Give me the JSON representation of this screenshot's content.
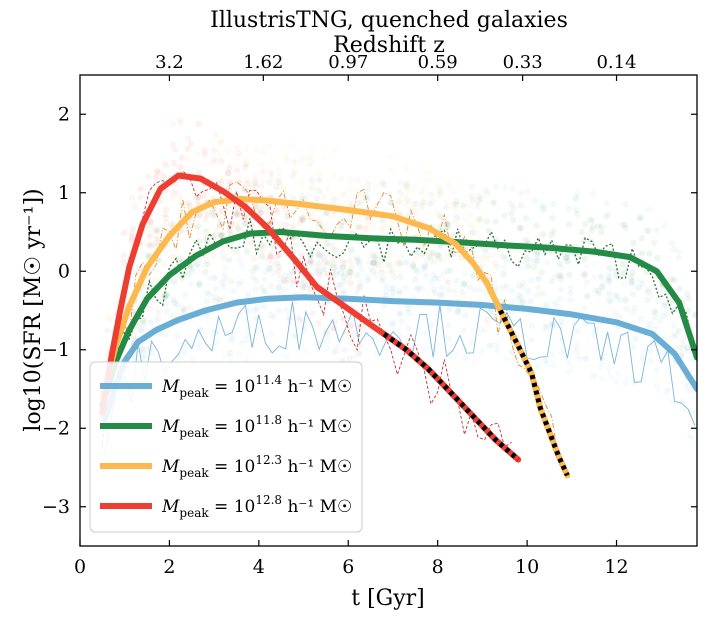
{
  "chart_data": {
    "type": "line",
    "title": "IllustrisTNG, quenched galaxies",
    "top_axis_title": "Redshift z",
    "xlabel": "t [Gyr]",
    "ylabel": "log10(SFR [M☉ yr⁻¹])",
    "xlim": [
      0,
      13.8
    ],
    "ylim": [
      -3.5,
      2.5
    ],
    "xticks": [
      0,
      2,
      4,
      6,
      8,
      10,
      12
    ],
    "yticks": [
      -3,
      -2,
      -1,
      0,
      1,
      2
    ],
    "top_ticks": [
      {
        "label": "3.2",
        "t": 2.0
      },
      {
        "label": "1.62",
        "t": 4.1
      },
      {
        "label": "0.97",
        "t": 6.0
      },
      {
        "label": "0.59",
        "t": 8.0
      },
      {
        "label": "0.33",
        "t": 9.9
      },
      {
        "label": "0.14",
        "t": 12.0
      }
    ],
    "legend_position": "lower-left",
    "series": [
      {
        "name": "Mpeak = 10^11.4 h^-1 M☉",
        "legend_base": "M",
        "legend_sub": "peak",
        "legend_eq": " = 10",
        "legend_exp": "11.4",
        "legend_tail": " h⁻¹ M☉",
        "color": "#6aaed6",
        "t": [
          0.55,
          0.8,
          1.0,
          1.3,
          1.7,
          2.2,
          2.8,
          3.5,
          4.2,
          5.0,
          6.0,
          7.0,
          8.0,
          9.0,
          10.0,
          11.0,
          12.0,
          12.8,
          13.3,
          13.8
        ],
        "sfr": [
          -1.9,
          -1.45,
          -1.15,
          -0.9,
          -0.75,
          -0.62,
          -0.5,
          -0.4,
          -0.35,
          -0.33,
          -0.35,
          -0.38,
          -0.4,
          -0.43,
          -0.48,
          -0.55,
          -0.65,
          -0.8,
          -1.05,
          -1.5
        ],
        "quench_t": null
      },
      {
        "name": "Mpeak = 10^11.8 h^-1 M☉",
        "legend_base": "M",
        "legend_sub": "peak",
        "legend_eq": " = 10",
        "legend_exp": "11.8",
        "legend_tail": " h⁻¹ M☉",
        "color": "#238b45",
        "t": [
          0.5,
          0.8,
          1.1,
          1.5,
          2.0,
          2.6,
          3.2,
          3.8,
          4.5,
          5.5,
          6.5,
          7.5,
          8.5,
          9.5,
          10.5,
          11.5,
          12.3,
          12.9,
          13.4,
          13.8
        ],
        "sfr": [
          -1.7,
          -1.15,
          -0.75,
          -0.35,
          -0.05,
          0.2,
          0.38,
          0.48,
          0.5,
          0.45,
          0.42,
          0.4,
          0.37,
          0.33,
          0.3,
          0.25,
          0.18,
          0.0,
          -0.4,
          -1.1
        ],
        "quench_t": null
      },
      {
        "name": "Mpeak = 10^12.3 h^-1 M☉",
        "legend_base": "M",
        "legend_sub": "peak",
        "legend_eq": " = 10",
        "legend_exp": "12.3",
        "legend_tail": " h⁻¹ M☉",
        "color": "#fdb94d",
        "t": [
          0.5,
          0.8,
          1.1,
          1.5,
          2.0,
          2.5,
          3.0,
          3.6,
          4.2,
          5.0,
          6.0,
          7.0,
          7.8,
          8.4,
          8.8,
          9.1,
          9.4,
          9.8,
          10.1,
          10.3,
          10.5,
          10.7,
          10.9
        ],
        "sfr": [
          -1.6,
          -0.95,
          -0.45,
          0.05,
          0.45,
          0.75,
          0.88,
          0.92,
          0.9,
          0.85,
          0.78,
          0.7,
          0.55,
          0.35,
          0.1,
          -0.15,
          -0.5,
          -0.95,
          -1.3,
          -1.75,
          -2.05,
          -2.35,
          -2.6
        ],
        "quench_t": 9.4
      },
      {
        "name": "Mpeak = 10^12.8 h^-1 M☉",
        "legend_base": "M",
        "legend_sub": "peak",
        "legend_eq": " = 10",
        "legend_exp": "12.8",
        "legend_tail": " h⁻¹ M☉",
        "color": "#ee3e32",
        "t": [
          0.5,
          0.7,
          0.9,
          1.1,
          1.4,
          1.8,
          2.2,
          2.7,
          3.2,
          3.7,
          4.2,
          4.8,
          5.3,
          5.8,
          6.3,
          6.8,
          7.3,
          7.8,
          8.3,
          8.8,
          9.3,
          9.8
        ],
        "sfr": [
          -1.8,
          -1.1,
          -0.5,
          0.05,
          0.6,
          1.05,
          1.22,
          1.18,
          1.02,
          0.82,
          0.55,
          0.15,
          -0.2,
          -0.4,
          -0.6,
          -0.8,
          -1.0,
          -1.25,
          -1.55,
          -1.85,
          -2.15,
          -2.4
        ],
        "quench_t": 6.4
      }
    ]
  }
}
